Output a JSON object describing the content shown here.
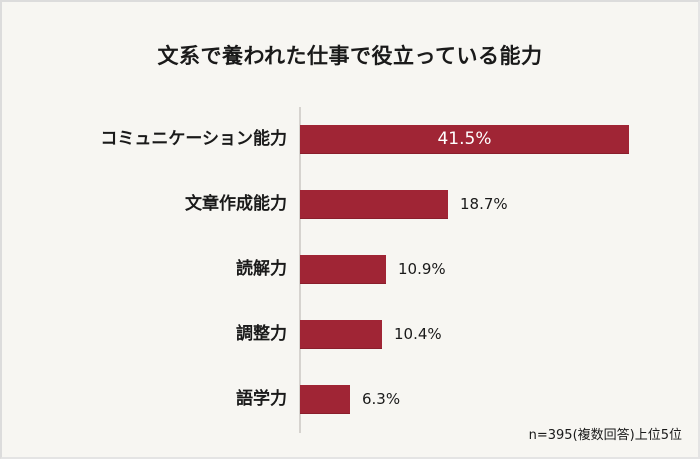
{
  "chart_data": {
    "type": "bar",
    "orientation": "horizontal",
    "title": "文系で養われた仕事で役立っている能力",
    "categories": [
      "コミュニケーション能力",
      "文章作成能力",
      "読解力",
      "調整力",
      "語学力"
    ],
    "values": [
      41.5,
      18.7,
      10.9,
      10.4,
      6.3
    ],
    "value_labels": [
      "41.5%",
      "18.7%",
      "10.9%",
      "10.4%",
      "6.3%"
    ],
    "unit": "%",
    "xlabel": "",
    "ylabel": "",
    "grid": false,
    "legend": null,
    "bar_color": "#a02535",
    "annotation": "n=395(複数回答)上位5位"
  },
  "title": "文系で養われた仕事で役立っている能力",
  "note": "n=395(複数回答)上位5位",
  "rows": [
    {
      "label": "コミュニケーション能力",
      "value": "41.5%"
    },
    {
      "label": "文章作成能力",
      "value": "18.7%"
    },
    {
      "label": "読解力",
      "value": "10.9%"
    },
    {
      "label": "調整力",
      "value": "10.4%"
    },
    {
      "label": "語学力",
      "value": "6.3%"
    }
  ]
}
